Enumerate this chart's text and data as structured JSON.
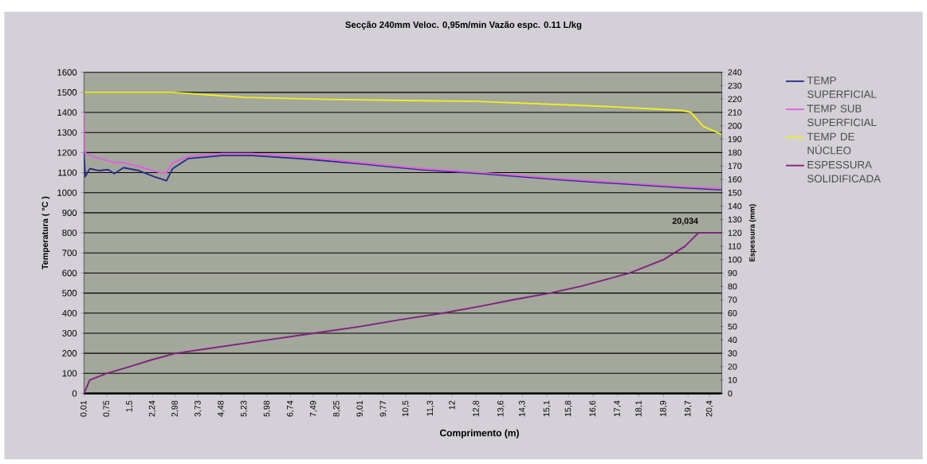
{
  "chart_data": {
    "type": "line",
    "title": "Secção 240mm      Veloc. 0,95m/min      Vazão espc. 0.11 L/kg",
    "xlabel": "Comprimento (m)",
    "ylabel": "Temperatura ( °C )",
    "y2label": "Espessura (mm)",
    "xlim": [
      0.01,
      20.8
    ],
    "ylim": [
      0,
      1600
    ],
    "y2lim": [
      0,
      240
    ],
    "xticks": [
      {
        "value": 0.01,
        "label": "0,01"
      },
      {
        "value": 0.75,
        "label": "0,75"
      },
      {
        "value": 1.5,
        "label": "1,5"
      },
      {
        "value": 2.24,
        "label": "2,24"
      },
      {
        "value": 2.98,
        "label": "2,98"
      },
      {
        "value": 3.73,
        "label": "3,73"
      },
      {
        "value": 4.48,
        "label": "4,48"
      },
      {
        "value": 5.23,
        "label": "5,23"
      },
      {
        "value": 5.98,
        "label": "5,98"
      },
      {
        "value": 6.74,
        "label": "6,74"
      },
      {
        "value": 7.49,
        "label": "7,49"
      },
      {
        "value": 8.25,
        "label": "8,25"
      },
      {
        "value": 9.01,
        "label": "9,01"
      },
      {
        "value": 9.77,
        "label": "9,77"
      },
      {
        "value": 10.5,
        "label": "10,5"
      },
      {
        "value": 11.3,
        "label": "11,3"
      },
      {
        "value": 12,
        "label": "12"
      },
      {
        "value": 12.8,
        "label": "12,8"
      },
      {
        "value": 13.6,
        "label": "13,6"
      },
      {
        "value": 14.3,
        "label": "14,3"
      },
      {
        "value": 15.1,
        "label": "15,1"
      },
      {
        "value": 15.8,
        "label": "15,8"
      },
      {
        "value": 16.6,
        "label": "16,6"
      },
      {
        "value": 17.4,
        "label": "17,4"
      },
      {
        "value": 18.1,
        "label": "18,1"
      },
      {
        "value": 18.9,
        "label": "18,9"
      },
      {
        "value": 19.7,
        "label": "19,7"
      },
      {
        "value": 20.4,
        "label": "20,4"
      }
    ],
    "yticks": [
      0,
      100,
      200,
      300,
      400,
      500,
      600,
      700,
      800,
      900,
      1000,
      1100,
      1200,
      1300,
      1400,
      1500,
      1600
    ],
    "y2ticks": [
      0,
      10,
      20,
      30,
      40,
      50,
      60,
      70,
      80,
      90,
      100,
      110,
      120,
      130,
      140,
      150,
      160,
      170,
      180,
      190,
      200,
      210,
      220,
      230,
      240
    ],
    "grid": "y",
    "legend": "right",
    "series": [
      {
        "name": "TEMP SUPERFICIAL",
        "color": "#2a2a8a",
        "x": [
          0.01,
          0.05,
          0.2,
          0.5,
          0.8,
          1.0,
          1.3,
          1.8,
          2.3,
          2.7,
          2.9,
          3.4,
          4.5,
          5.5,
          7,
          9,
          11,
          13,
          15.5,
          17.5,
          19.5,
          20.8
        ],
        "values": [
          1200,
          1080,
          1120,
          1110,
          1115,
          1095,
          1125,
          1110,
          1080,
          1060,
          1120,
          1170,
          1185,
          1185,
          1170,
          1145,
          1115,
          1095,
          1065,
          1045,
          1025,
          1015
        ]
      },
      {
        "name": "TEMP SUB SUPERFICIAL",
        "color": "#e060e0",
        "x": [
          0.01,
          0.03,
          0.3,
          1.0,
          1.3,
          1.8,
          2.5,
          2.7,
          2.9,
          3.4,
          4.5,
          5.5,
          7,
          9,
          11,
          13,
          15.5,
          17.5,
          19.5,
          20.8
        ],
        "values": [
          1400,
          1200,
          1180,
          1150,
          1150,
          1130,
          1100,
          1100,
          1150,
          1180,
          1195,
          1195,
          1180,
          1150,
          1120,
          1100,
          1070,
          1050,
          1030,
          1020
        ]
      },
      {
        "name": "TEMP DE NÚCLEO",
        "color": "#f0f020",
        "x": [
          0.01,
          2.9,
          5.23,
          8,
          12.8,
          17,
          19.5,
          19.8,
          20.2,
          20.8
        ],
        "values": [
          1500,
          1500,
          1475,
          1465,
          1455,
          1430,
          1410,
          1400,
          1330,
          1290
        ]
      },
      {
        "name": "ESPESSURA SOLIDIFICADA",
        "color": "#802080",
        "axis": "y2",
        "x": [
          0.01,
          0.2,
          0.75,
          1.5,
          2.2,
          3,
          4.5,
          6,
          7.5,
          9,
          10.3,
          11.7,
          12.9,
          14,
          15.2,
          16.2,
          17,
          17.8,
          18.9,
          19.6,
          20.034,
          20.8
        ],
        "values": [
          0,
          10,
          15,
          20,
          25,
          30,
          35,
          40,
          45,
          50,
          55,
          60,
          65,
          70,
          75,
          80,
          85,
          90,
          100,
          110,
          120,
          120
        ]
      }
    ],
    "annotations": [
      "20,034"
    ]
  }
}
